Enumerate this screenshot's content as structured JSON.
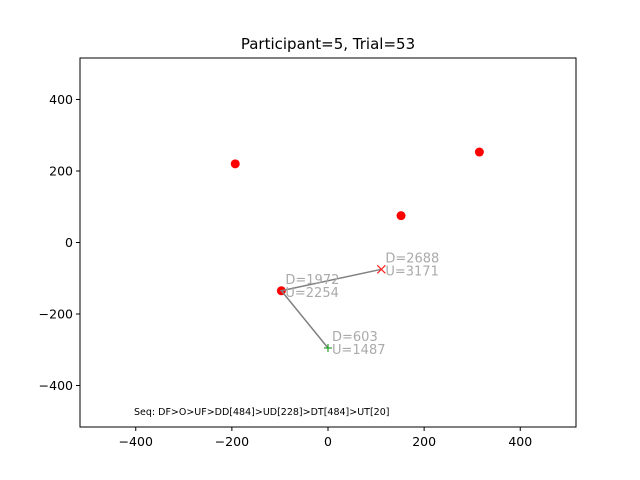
{
  "chart_data": {
    "type": "scatter",
    "title": "Participant=5, Trial=53",
    "xlim": [
      -516,
      516
    ],
    "ylim": [
      -516,
      516
    ],
    "xticks": [
      -400,
      -200,
      0,
      200,
      400
    ],
    "yticks": [
      -400,
      -200,
      0,
      200,
      400
    ],
    "xtick_labels": [
      "−400",
      "−200",
      "0",
      "200",
      "400"
    ],
    "ytick_labels": [
      "−400",
      "−200",
      "0",
      "200",
      "400"
    ],
    "grid": false,
    "targets": {
      "color": "#ff0000",
      "points": [
        {
          "x": -193,
          "y": 220
        },
        {
          "x": 315,
          "y": 253
        },
        {
          "x": 152,
          "y": 75
        },
        {
          "x": -97,
          "y": -135
        }
      ]
    },
    "path": {
      "color": "#808080",
      "points": [
        {
          "x": 0,
          "y": -295
        },
        {
          "x": -97,
          "y": -135
        },
        {
          "x": 111,
          "y": -75
        }
      ]
    },
    "start_marker": {
      "x": 0,
      "y": -295,
      "symbol": "+",
      "color": "#2a9d2a"
    },
    "end_marker": {
      "x": 111,
      "y": -75,
      "symbol": "x",
      "color": "#ff2020"
    },
    "annotations": [
      {
        "x": 0,
        "y": -295,
        "d": "D=603",
        "u": "U=1487"
      },
      {
        "x": -97,
        "y": -135,
        "d": "D=1972",
        "u": "U=2254"
      },
      {
        "x": 111,
        "y": -75,
        "d": "D=2688",
        "u": "U=3171"
      }
    ],
    "sequence": "Seq: DF>O>UF>DD[484]>UD[228]>DT[484]>UT[20]"
  }
}
